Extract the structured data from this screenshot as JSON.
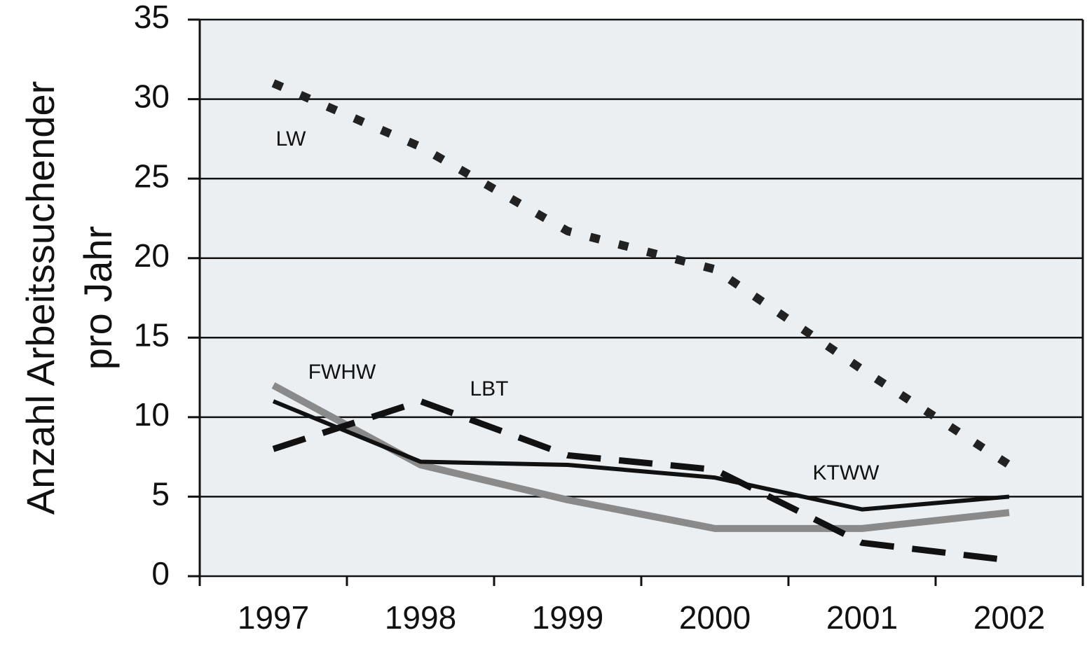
{
  "chart_data": {
    "type": "line",
    "ylabel": [
      "Anzahl Arbeitssuchender",
      "pro Jahr"
    ],
    "categories": [
      "1997",
      "1998",
      "1999",
      "2000",
      "2001",
      "2002"
    ],
    "ylim": [
      0,
      35
    ],
    "yticks": [
      0,
      5,
      10,
      15,
      20,
      25,
      30,
      35
    ],
    "grid": true,
    "series": [
      {
        "name": "LW",
        "color": "#222222",
        "style": "dotted",
        "values": [
          31,
          27,
          21.7,
          19.3,
          13,
          7
        ]
      },
      {
        "name": "FWHW",
        "color": "#8a8a8a",
        "style": "solid",
        "values": [
          12,
          7,
          4.8,
          3,
          3,
          4
        ]
      },
      {
        "name": "LBT",
        "color": "#111111",
        "style": "dashed",
        "values": [
          8,
          11,
          7.6,
          6.7,
          2.1,
          1
        ]
      },
      {
        "name": "KTWW",
        "color": "#111111",
        "style": "solid",
        "values": [
          11,
          7.2,
          7,
          6.2,
          4.2,
          5
        ]
      }
    ]
  }
}
